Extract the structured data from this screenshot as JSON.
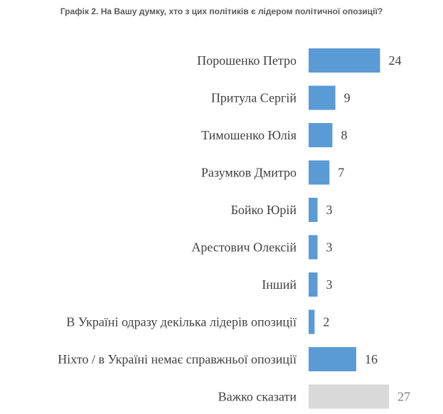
{
  "chart_data": {
    "type": "bar",
    "orientation": "horizontal",
    "title": "Графік 2. На Вашу думку, хто з цих політиків є лідером політичної опозиції?",
    "categories": [
      "Порошенко Петро",
      "Притула Сергій",
      "Тимошенко Юлія",
      "Разумков Дмитро",
      "Бойко Юрій",
      "Арестович Олексій",
      "Інший",
      "В Україні одразу декілька лідерів опозиції",
      "Ніхто / в Україні немає справжньої опозиції",
      "Важко сказати"
    ],
    "values": [
      24,
      9,
      8,
      7,
      3,
      3,
      3,
      2,
      16,
      27
    ],
    "colors": [
      "#5b9bd5",
      "#5b9bd5",
      "#5b9bd5",
      "#5b9bd5",
      "#5b9bd5",
      "#5b9bd5",
      "#5b9bd5",
      "#5b9bd5",
      "#5b9bd5",
      "#d9d9d9"
    ],
    "xlim": [
      0,
      27
    ],
    "grid": false,
    "legend": "none"
  }
}
